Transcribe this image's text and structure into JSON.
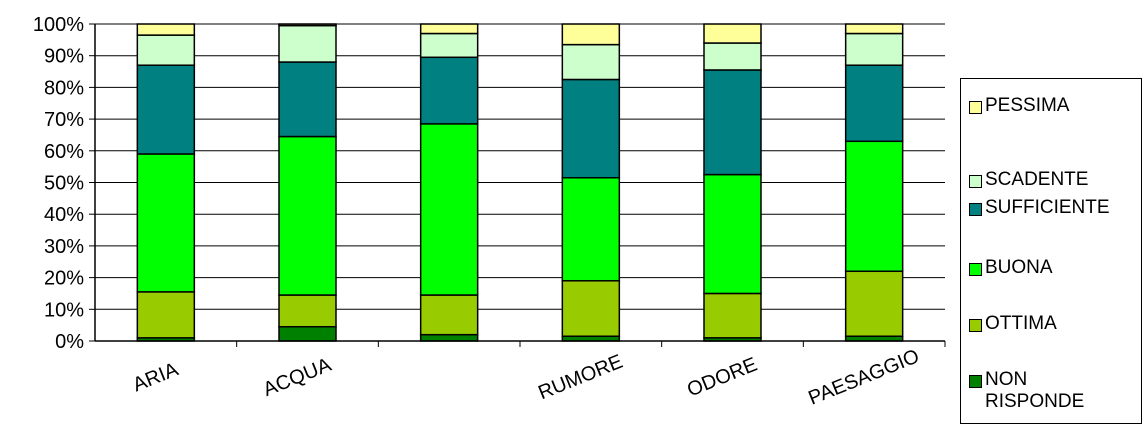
{
  "chart_data": {
    "type": "bar",
    "stacked": true,
    "percent": true,
    "categories": [
      "ARIA",
      "ACQUA",
      "",
      "RUMORE",
      "ODORE",
      "PAESAGGIO"
    ],
    "yticks": [
      "0%",
      "10%",
      "20%",
      "30%",
      "40%",
      "50%",
      "60%",
      "70%",
      "80%",
      "90%",
      "100%"
    ],
    "ylim": [
      0,
      100
    ],
    "grid": true,
    "legend_position": "right",
    "series": [
      {
        "name": "NON RISPONDE",
        "color": "#008000",
        "values": [
          1,
          4.5,
          2,
          1.5,
          1,
          1.5
        ]
      },
      {
        "name": "OTTIMA",
        "color": "#99CC00",
        "values": [
          14.5,
          10,
          12.5,
          17.5,
          14,
          20.5
        ]
      },
      {
        "name": "BUONA",
        "color": "#00FF00",
        "values": [
          43.5,
          50,
          54,
          32.5,
          37.5,
          41
        ]
      },
      {
        "name": "SUFFICIENTE",
        "color": "#008080",
        "values": [
          28,
          23.5,
          21,
          31,
          33,
          24
        ]
      },
      {
        "name": "SCADENTE",
        "color": "#CCFFCC",
        "values": [
          9.5,
          11.5,
          7.5,
          11,
          8.5,
          10
        ]
      },
      {
        "name": "PESSIMA",
        "color": "#FFFF99",
        "values": [
          3.5,
          0.5,
          3,
          6.5,
          6,
          3
        ]
      }
    ]
  },
  "legend": {
    "items": [
      "PESSIMA",
      "SCADENTE",
      "SUFFICIENTE",
      "BUONA",
      "OTTIMA",
      "NON RISPONDE"
    ]
  }
}
